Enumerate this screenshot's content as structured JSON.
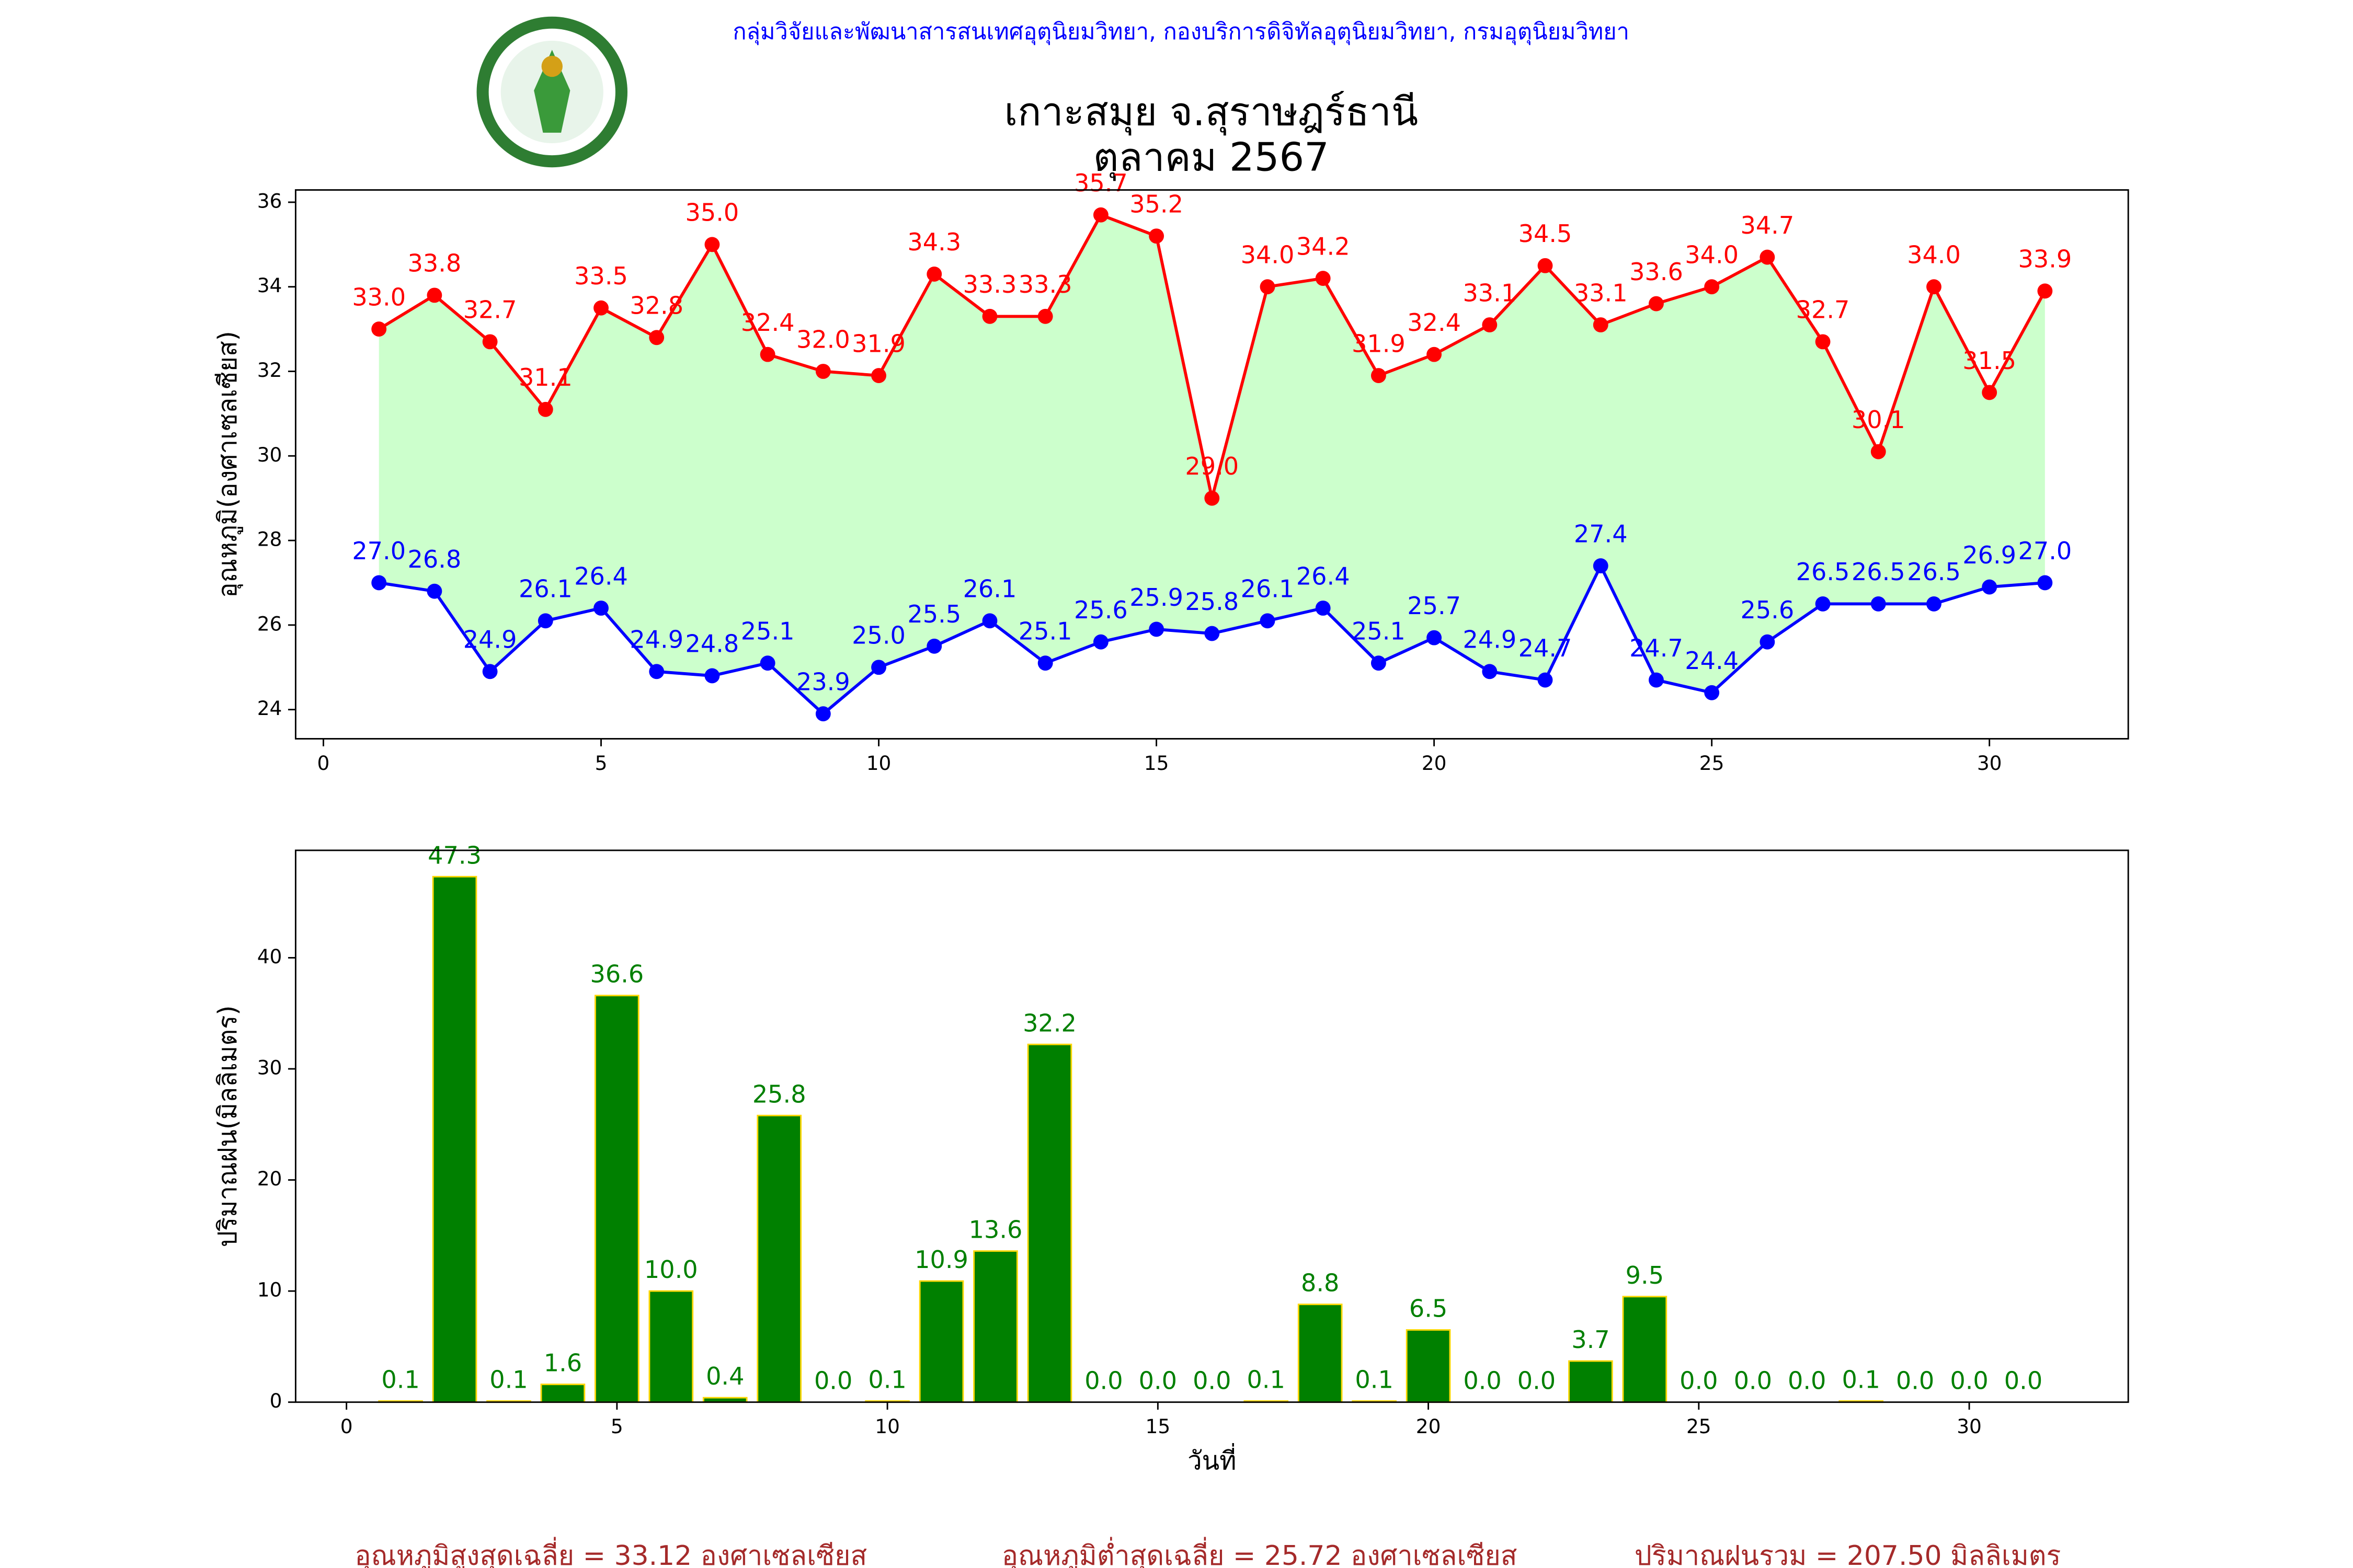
{
  "header": {
    "agency": "กลุ่มวิจัยและพัฒนาสารสนเทศอุตุนิยมวิทยา, กองบริการดิจิทัลอุตุนิยมวิทยา, กรมอุตุนิยมวิทยา",
    "title": "เกาะสมุย จ.สุราษฎร์ธานี",
    "subtitle": "ตุลาคม 2567"
  },
  "chart_data": [
    {
      "type": "line",
      "ylabel": "อุณหภูมิ(องศาเซลเซียส)",
      "x": [
        1,
        2,
        3,
        4,
        5,
        6,
        7,
        8,
        9,
        10,
        11,
        12,
        13,
        14,
        15,
        16,
        17,
        18,
        19,
        20,
        21,
        22,
        23,
        24,
        25,
        26,
        27,
        28,
        29,
        30,
        31
      ],
      "xlim": [
        -0.5,
        32.5
      ],
      "xticks": [
        0,
        5,
        10,
        15,
        20,
        25,
        30
      ],
      "ylim": [
        23.31,
        36.29
      ],
      "yticks": [
        24,
        26,
        28,
        30,
        32,
        34,
        36
      ],
      "fill_color": "#ccffcc",
      "series": [
        {
          "color": "#ff0000",
          "values": [
            33.0,
            33.8,
            32.7,
            31.1,
            33.5,
            32.8,
            35.0,
            32.4,
            32.0,
            31.9,
            34.3,
            33.3,
            33.3,
            35.7,
            35.2,
            29.0,
            34.0,
            34.2,
            31.9,
            32.4,
            33.1,
            34.5,
            33.1,
            33.6,
            34.0,
            34.7,
            32.7,
            30.1,
            34.0,
            31.5,
            33.9
          ],
          "value_labels": [
            "33.0",
            "33.8",
            "32.7",
            "31.1",
            "33.5",
            "32.8",
            "35.0",
            "32.4",
            "32.0",
            "31.9",
            "34.3",
            "33.3",
            "33.3",
            "35.7",
            "35.2",
            "29.0",
            "34.0",
            "34.2",
            "31.9",
            "32.4",
            "33.1",
            "34.5",
            "33.1",
            "33.6",
            "34.0",
            "34.7",
            "32.7",
            "30.1",
            "34.0",
            "31.5",
            "33.9"
          ]
        },
        {
          "color": "#0000ff",
          "values": [
            27.0,
            26.8,
            24.9,
            26.1,
            26.4,
            24.9,
            24.8,
            25.1,
            23.9,
            25.0,
            25.5,
            26.1,
            25.1,
            25.6,
            25.9,
            25.8,
            26.1,
            26.4,
            25.1,
            25.7,
            24.9,
            24.7,
            27.4,
            24.7,
            24.4,
            25.6,
            26.5,
            26.5,
            26.5,
            26.9,
            27.0
          ],
          "value_labels": [
            "27.0",
            "26.8",
            "24.9",
            "26.1",
            "26.4",
            "24.9",
            "24.8",
            "25.1",
            "23.9",
            "25.0",
            "25.5",
            "26.1",
            "25.1",
            "25.6",
            "25.9",
            "25.8",
            "26.1",
            "26.4",
            "25.1",
            "25.7",
            "24.9",
            "24.7",
            "27.4",
            "24.7",
            "24.4",
            "25.6",
            "26.5",
            "26.5",
            "26.5",
            "26.9",
            "27.0"
          ]
        }
      ]
    },
    {
      "type": "bar",
      "xlabel": "วันที่",
      "ylabel": "ปริมาณฝน(มิลลิเมตร)",
      "x": [
        1,
        2,
        3,
        4,
        5,
        6,
        7,
        8,
        9,
        10,
        11,
        12,
        13,
        14,
        15,
        16,
        17,
        18,
        19,
        20,
        21,
        22,
        23,
        24,
        25,
        26,
        27,
        28,
        29,
        30,
        31
      ],
      "xlim": [
        -0.94,
        32.94
      ],
      "xticks": [
        0,
        5,
        10,
        15,
        20,
        25,
        30
      ],
      "ylim": [
        0,
        49.67
      ],
      "yticks": [
        0,
        10,
        20,
        30,
        40
      ],
      "color": "#008000",
      "edge_color": "#ffd700",
      "label_color": "#008000",
      "values": [
        0.1,
        47.3,
        0.1,
        1.6,
        36.6,
        10.0,
        0.4,
        25.8,
        0.0,
        0.1,
        10.9,
        13.6,
        32.2,
        0.0,
        0.0,
        0.0,
        0.1,
        8.8,
        0.1,
        6.5,
        0.0,
        0.0,
        3.7,
        9.5,
        0.0,
        0.0,
        0.0,
        0.1,
        0.0,
        0.0,
        0.0
      ],
      "value_labels": [
        "0.1",
        "47.3",
        "0.1",
        "1.6",
        "36.6",
        "10.0",
        "0.4",
        "25.8",
        "0.0",
        "0.1",
        "10.9",
        "13.6",
        "32.2",
        "0.0",
        "0.0",
        "0.0",
        "0.1",
        "8.8",
        "0.1",
        "6.5",
        "0.0",
        "0.0",
        "3.7",
        "9.5",
        "0.0",
        "0.0",
        "0.0",
        "0.1",
        "0.0",
        "0.0",
        "0.0"
      ]
    }
  ],
  "footer": [
    "อุณหภูมิสูงสุดเฉลี่ย = 33.12 องศาเซลเซียส",
    "อุณหภูมิต่ำสุดเฉลี่ย = 25.72 องศาเซลเซียส",
    "ปริมาณฝนรวม = 207.50 มิลลิเมตร"
  ]
}
